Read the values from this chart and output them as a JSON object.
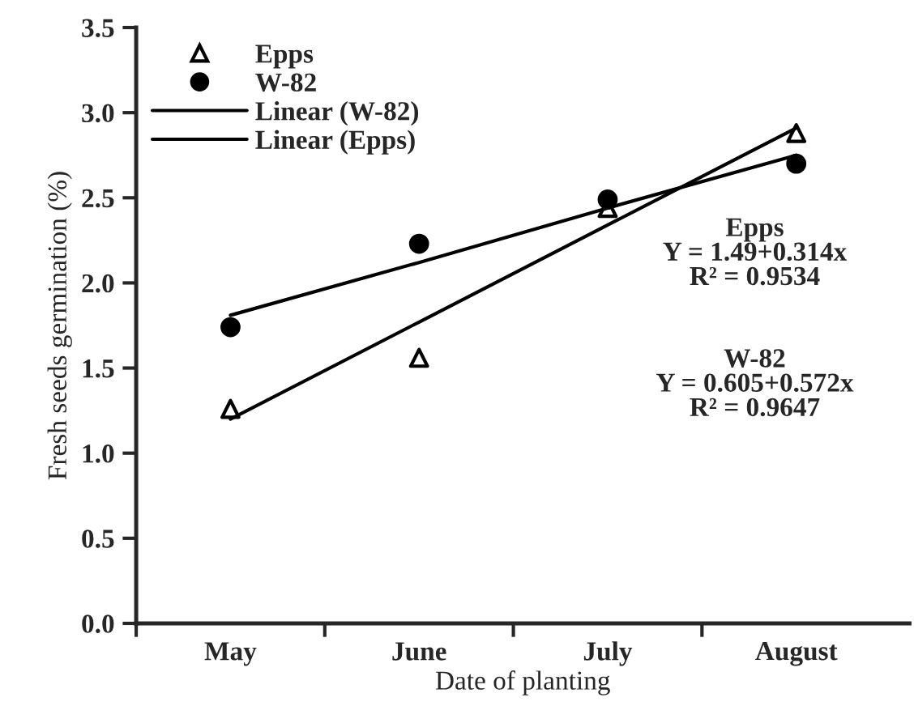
{
  "chart_data": {
    "type": "scatter",
    "xlabel": "Date of planting",
    "ylabel": "Fresh seeds germination (%)",
    "categories": [
      "May",
      "June",
      "July",
      "August"
    ],
    "series": [
      {
        "name": "Epps",
        "marker": "triangle",
        "color": "#000000",
        "values": [
          1.26,
          1.56,
          2.44,
          2.88
        ]
      },
      {
        "name": "W-82",
        "marker": "circle",
        "color": "#000000",
        "values": [
          1.74,
          2.23,
          2.49,
          2.7
        ]
      },
      {
        "name": "Linear (W-82)",
        "type": "line",
        "marker": "none",
        "line_style": "solid",
        "color": "#000000",
        "values": [
          1.81,
          2.12,
          2.44,
          2.75
        ]
      },
      {
        "name": "Linear (Epps)",
        "type": "line",
        "marker": "none",
        "line_style": "solid",
        "color": "#000000",
        "values": [
          1.2,
          1.77,
          2.34,
          2.91
        ]
      }
    ],
    "ylim": [
      0,
      3.5
    ],
    "yticks": [
      {
        "value": 0,
        "label": "0.0"
      },
      0.5,
      {
        "value": 1,
        "label": "1.0"
      },
      1.5,
      {
        "value": 2,
        "label": "2.0"
      },
      2.5,
      {
        "value": 3,
        "label": "3.0"
      },
      3.5
    ],
    "grid": false,
    "legend": "top left",
    "annotations": [
      "Epps\nY = 1.49+0.314x\nR² = 0.9534",
      "W-82\nY = 0.605+0.572x\nR² = 0.9647"
    ]
  }
}
